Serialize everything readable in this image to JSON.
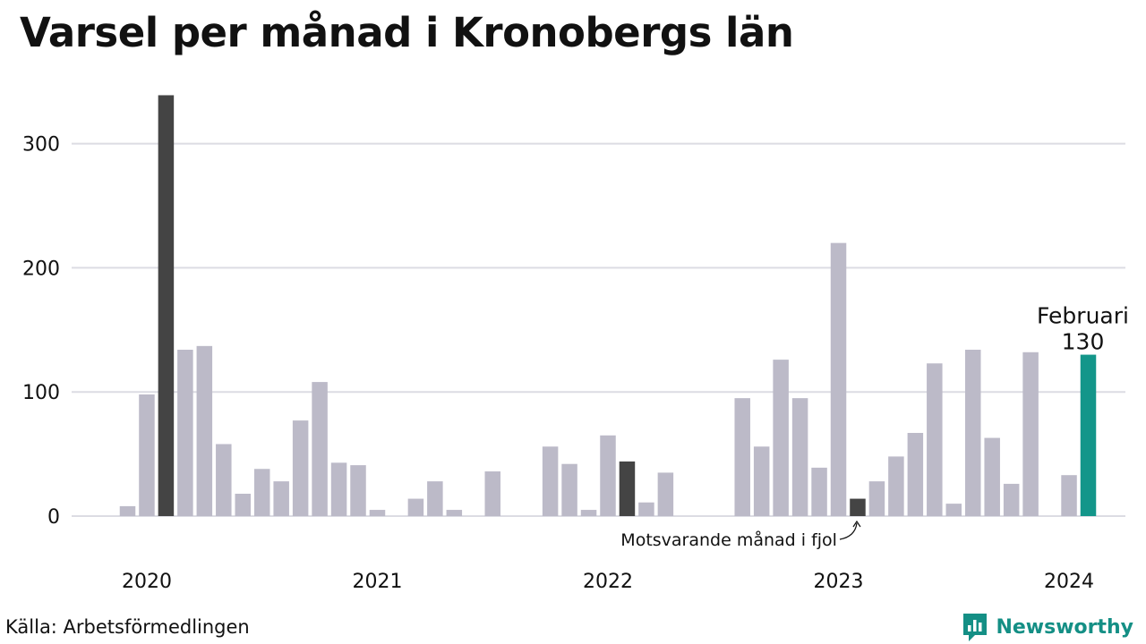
{
  "chart_data": {
    "type": "bar",
    "title": "Varsel per månad i Kronobergs län",
    "xlabel": "",
    "ylabel": "",
    "ylim": [
      0,
      340
    ],
    "yticks": [
      0,
      100,
      200,
      300
    ],
    "xticks": [
      {
        "label": "2020",
        "month": "2020-01"
      },
      {
        "label": "2021",
        "month": "2021-01"
      },
      {
        "label": "2022",
        "month": "2022-01"
      },
      {
        "label": "2023",
        "month": "2023-01"
      },
      {
        "label": "2024",
        "month": "2024-01"
      }
    ],
    "grid": true,
    "categories": [
      "2019-12",
      "2020-01",
      "2020-02",
      "2020-03",
      "2020-04",
      "2020-05",
      "2020-06",
      "2020-07",
      "2020-08",
      "2020-09",
      "2020-10",
      "2020-11",
      "2020-12",
      "2021-01",
      "2021-02",
      "2021-03",
      "2021-04",
      "2021-05",
      "2021-06",
      "2021-07",
      "2021-08",
      "2021-09",
      "2021-10",
      "2021-11",
      "2021-12",
      "2022-01",
      "2022-02",
      "2022-03",
      "2022-04",
      "2022-05",
      "2022-06",
      "2022-07",
      "2022-08",
      "2022-09",
      "2022-10",
      "2022-11",
      "2022-12",
      "2023-01",
      "2023-02",
      "2023-03",
      "2023-04",
      "2023-05",
      "2023-06",
      "2023-07",
      "2023-08",
      "2023-09",
      "2023-10",
      "2023-11",
      "2023-12",
      "2024-01",
      "2024-02"
    ],
    "values": [
      8,
      98,
      339,
      134,
      137,
      58,
      18,
      38,
      28,
      77,
      108,
      43,
      41,
      5,
      0,
      14,
      28,
      5,
      0,
      36,
      0,
      0,
      56,
      42,
      5,
      65,
      44,
      11,
      35,
      0,
      0,
      0,
      95,
      56,
      126,
      95,
      39,
      220,
      14,
      28,
      48,
      67,
      123,
      10,
      134,
      63,
      26,
      132,
      0,
      33,
      130
    ],
    "highlight": {
      "month": "2024-02",
      "label": "Februari",
      "value": 130,
      "value_label": "130",
      "color": "#13968a"
    },
    "same_month_previous_years": [
      "2020-02",
      "2021-02",
      "2022-02",
      "2023-02"
    ],
    "same_month_color": "#444444",
    "bar_color": "#bcbac8",
    "annotation": {
      "text": "Motsvarande månad i fjol",
      "month": "2023-02"
    }
  },
  "footer": {
    "source": "Källa: Arbetsförmedlingen",
    "brand": "Newsworthy",
    "brand_icon": "newsworthy-logo-icon",
    "brand_color": "#148f85"
  }
}
